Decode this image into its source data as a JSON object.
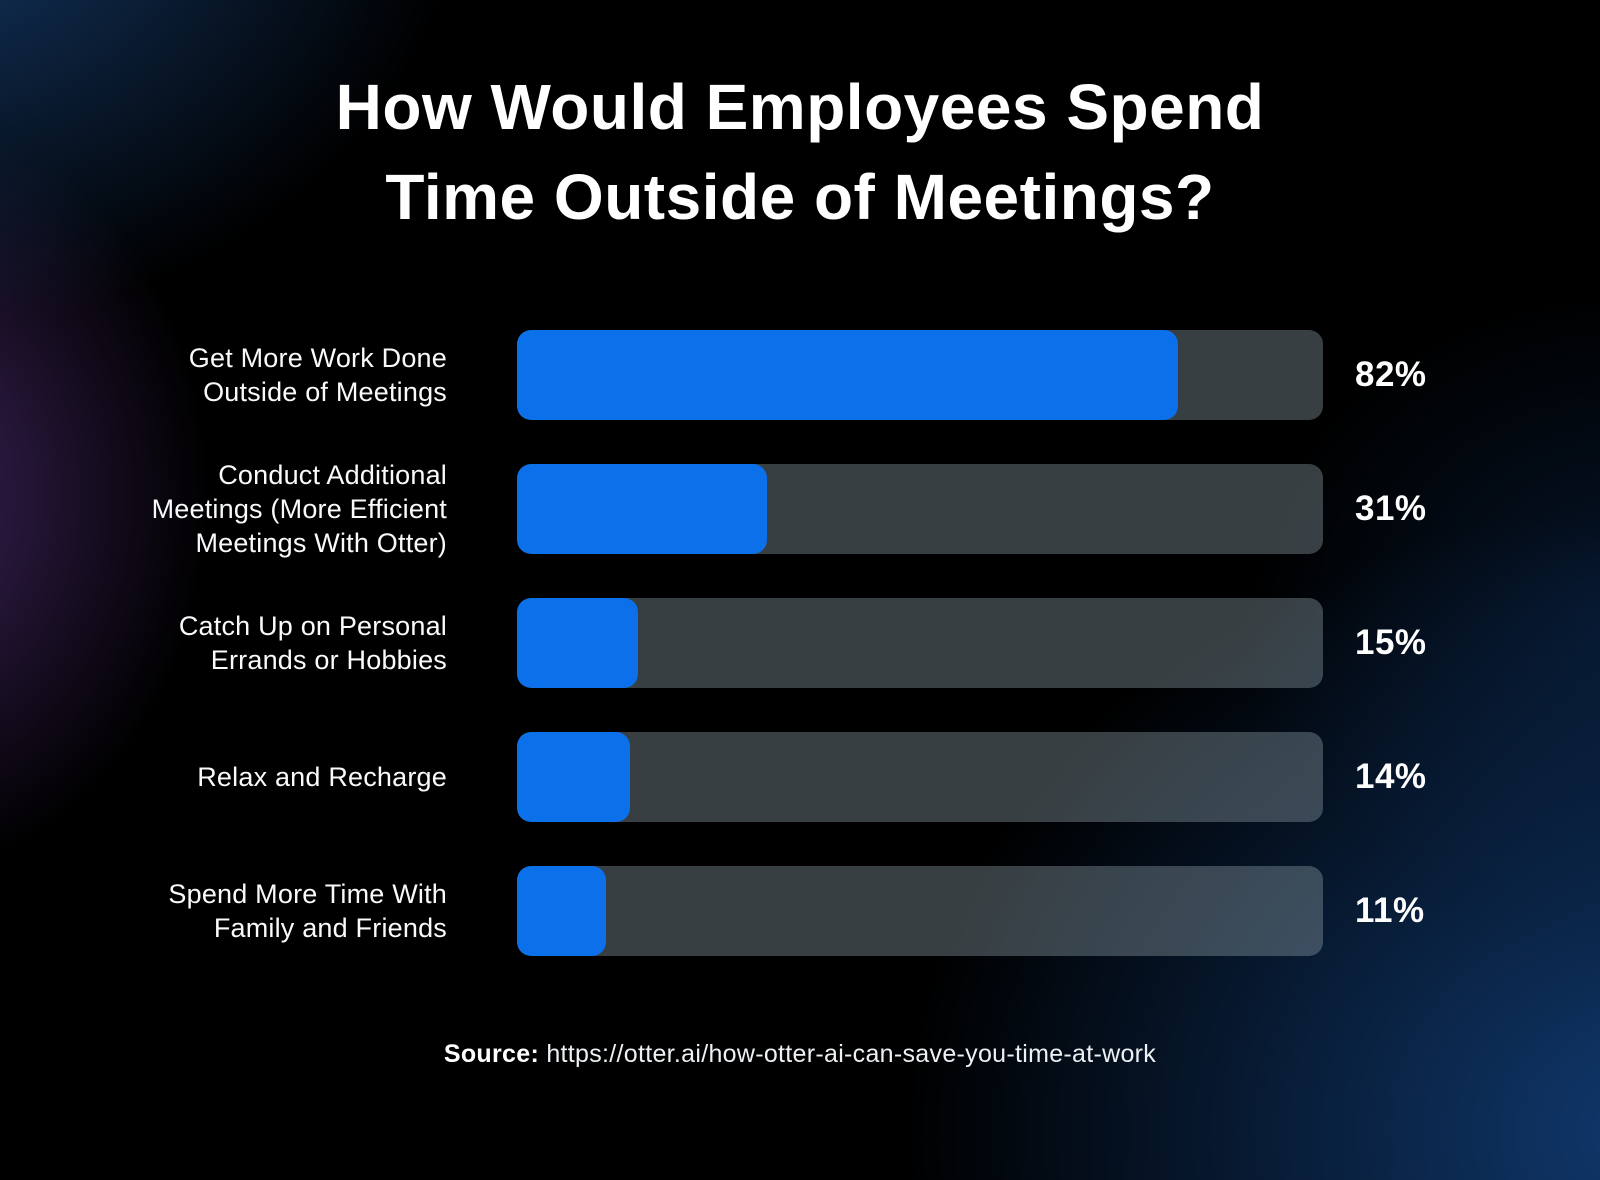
{
  "header": {
    "title": "How Would Employees Spend Time Outside of Meetings?",
    "title_lines": [
      "How Would Employees Spend",
      "Time Outside of Meetings?"
    ]
  },
  "source": {
    "label": "Source:",
    "url_text": "https://otter.ai/how-otter-ai-can-save-you-time-at-work"
  },
  "colors": {
    "background": "#000000",
    "glow_navy": "#103a70",
    "glow_purple": "#482a6c",
    "bar_fill": "#0b70e9",
    "bar_track": "rgba(141,158,166,0.40)",
    "text": "#ffffff"
  },
  "chart_data": {
    "type": "bar",
    "orientation": "horizontal",
    "title": "How Would Employees Spend Time Outside of Meetings?",
    "categories": [
      "Get More Work Done Outside of Meetings",
      "Conduct Additional Meetings (More Efficient Meetings With Otter)",
      "Catch Up on Personal Errands or Hobbies",
      "Relax and Recharge",
      "Spend More Time With Family and Friends"
    ],
    "category_lines": [
      [
        "Get More Work Done",
        "Outside of Meetings"
      ],
      [
        "Conduct Additional",
        "Meetings (More Efficient",
        "Meetings With Otter)"
      ],
      [
        "Catch Up on Personal",
        "Errands or Hobbies"
      ],
      [
        "Relax and Recharge"
      ],
      [
        "Spend More Time With",
        "Family and Friends"
      ]
    ],
    "values": [
      82,
      31,
      15,
      14,
      11
    ],
    "value_labels": [
      "82%",
      "31%",
      "15%",
      "14%",
      "11%"
    ],
    "xlabel": "",
    "ylabel": "",
    "xlim": [
      0,
      100
    ],
    "grid": false,
    "legend": false,
    "value_label_position": "right"
  }
}
